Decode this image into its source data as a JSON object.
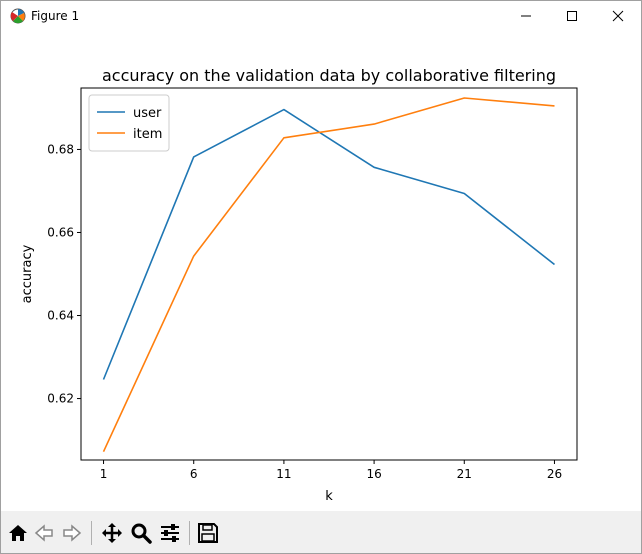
{
  "window": {
    "title": "Figure 1",
    "icon": "matplotlib-icon",
    "controls": [
      "minimize-icon",
      "maximize-icon",
      "close-icon"
    ]
  },
  "toolbar": {
    "buttons": [
      {
        "name": "home-icon"
      },
      {
        "name": "back-arrow-icon"
      },
      {
        "name": "forward-arrow-icon"
      },
      {
        "name": "pan-move-icon"
      },
      {
        "name": "zoom-magnifier-icon"
      },
      {
        "name": "configure-subplots-icon"
      },
      {
        "name": "save-floppy-icon"
      }
    ]
  },
  "chart_data": {
    "type": "line",
    "title": "accuracy on the validation data by collaborative filtering",
    "xlabel": "k",
    "ylabel": "accuracy",
    "x": [
      1,
      6,
      11,
      16,
      21,
      26
    ],
    "xticks": [
      "1",
      "6",
      "11",
      "16",
      "21",
      "26"
    ],
    "yticks": [
      "0.62",
      "0.64",
      "0.66",
      "0.68"
    ],
    "xlim": [
      -0.25,
      27.25
    ],
    "ylim": [
      0.6052,
      0.6948
    ],
    "grid": false,
    "legend_position": "upper-left",
    "series": [
      {
        "name": "user",
        "color": "#1f77b4",
        "values": [
          0.6246,
          0.6782,
          0.6896,
          0.6757,
          0.6694,
          0.6523
        ]
      },
      {
        "name": "item",
        "color": "#ff7f0e",
        "values": [
          0.6072,
          0.6543,
          0.6828,
          0.6861,
          0.6924,
          0.6905
        ]
      }
    ]
  }
}
